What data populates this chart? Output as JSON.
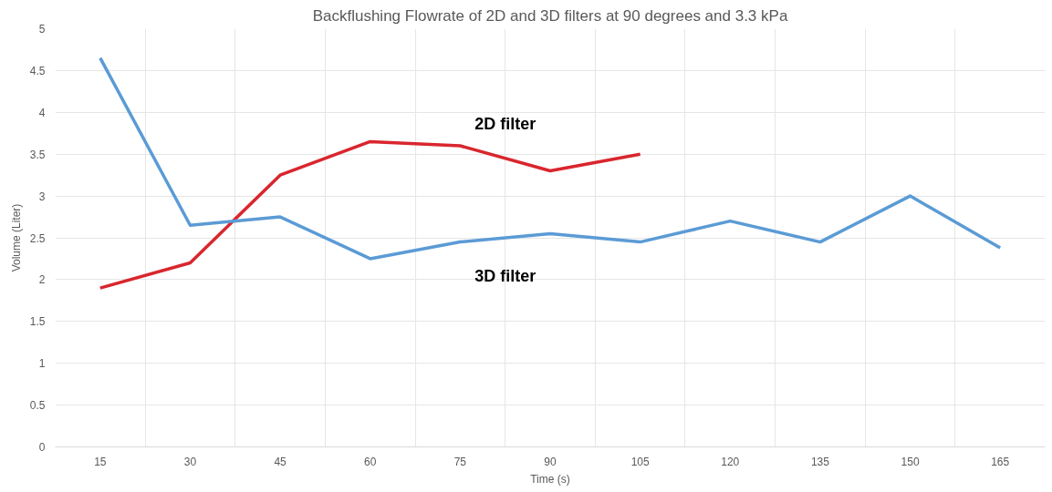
{
  "chart_data": {
    "type": "line",
    "title": "Backflushing Flowrate of 2D and 3D filters at 90 degrees and 3.3 kPa",
    "xlabel": "Time (s)",
    "ylabel": "Volume (Liter)",
    "categories": [
      "15",
      "30",
      "45",
      "60",
      "75",
      "90",
      "105",
      "120",
      "135",
      "150",
      "165"
    ],
    "series": [
      {
        "name": "2D filter",
        "color": "#d9262e",
        "values": [
          1.9,
          2.2,
          3.25,
          3.65,
          3.6,
          3.3,
          3.5,
          null,
          null,
          null,
          null
        ]
      },
      {
        "name": "3D filter",
        "color": "#5b9bd5",
        "values": [
          4.65,
          2.65,
          2.75,
          2.25,
          2.45,
          2.55,
          2.45,
          2.7,
          2.45,
          3.0,
          2.38
        ]
      }
    ],
    "ylim": [
      0,
      5
    ],
    "yticks": [
      0,
      0.5,
      1,
      1.5,
      2,
      2.5,
      3,
      3.5,
      4,
      4.5,
      5
    ],
    "grid": true,
    "legend": false,
    "marker": "none",
    "line_style": "solid"
  }
}
